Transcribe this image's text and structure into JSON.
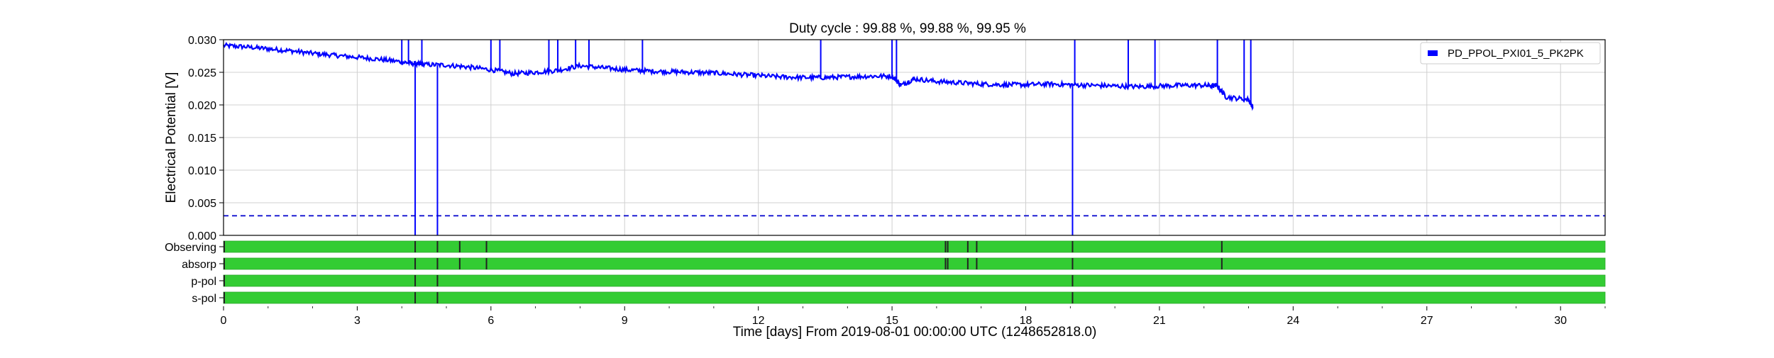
{
  "chart_data": {
    "type": "line",
    "title": "Duty cycle : 99.88 %, 99.88 %, 99.95 %",
    "xlabel": "Time [days] From 2019-08-01 00:00:00 UTC (1248652818.0)",
    "ylabel": "Electrical Potential [V]",
    "xlim": [
      0,
      31
    ],
    "ylim": [
      0,
      0.03
    ],
    "x_ticks": [
      0,
      3,
      6,
      9,
      12,
      15,
      18,
      21,
      24,
      27,
      30
    ],
    "x_tick_labels": [
      "0",
      "3",
      "6",
      "9",
      "12",
      "15",
      "18",
      "21",
      "24",
      "27",
      "30"
    ],
    "y_ticks": [
      0,
      0.005,
      0.01,
      0.015,
      0.02,
      0.025,
      0.03
    ],
    "y_tick_labels": [
      "0.000",
      "0.005",
      "0.010",
      "0.015",
      "0.020",
      "0.025",
      "0.030"
    ],
    "grid": true,
    "legend_position": "top-right",
    "colors": {
      "series": "#0000ff",
      "threshold": "#0000cc",
      "segment_on": "#33cc33",
      "segment_off": "#222222",
      "grid": "#d0d0d0"
    },
    "series": [
      {
        "name": "PD_PPOL_PXI01_5_PK2PK",
        "x": [
          0,
          0.5,
          1,
          1.5,
          2,
          2.5,
          3,
          3.5,
          4,
          4.3,
          4.5,
          5,
          5.5,
          6,
          6.5,
          7,
          7.5,
          8,
          8.5,
          9,
          9.5,
          10,
          10.5,
          11,
          11.5,
          12,
          12.5,
          13,
          13.5,
          14,
          14.5,
          15,
          15.2,
          15.5,
          16,
          16.5,
          17,
          17.5,
          18,
          18.5,
          19,
          19.5,
          20,
          20.5,
          21,
          21.5,
          22,
          22.3,
          22.5,
          23,
          23.1
        ],
        "y": [
          0.0291,
          0.0289,
          0.0286,
          0.0283,
          0.0279,
          0.0276,
          0.0273,
          0.027,
          0.0266,
          0.0263,
          0.0262,
          0.0261,
          0.0258,
          0.0254,
          0.0248,
          0.025,
          0.0253,
          0.026,
          0.0257,
          0.0254,
          0.0252,
          0.0251,
          0.025,
          0.0249,
          0.0247,
          0.0245,
          0.0243,
          0.0242,
          0.0242,
          0.0243,
          0.0244,
          0.0244,
          0.023,
          0.024,
          0.0236,
          0.0234,
          0.0232,
          0.0231,
          0.0231,
          0.0232,
          0.0231,
          0.023,
          0.0229,
          0.0228,
          0.0229,
          0.023,
          0.023,
          0.0229,
          0.0212,
          0.0208,
          0.0196
        ]
      }
    ],
    "spikes_up": [
      4.0,
      4.15,
      4.45,
      6.0,
      6.2,
      7.3,
      7.5,
      7.9,
      8.2,
      9.4,
      13.4,
      15.0,
      15.1,
      19.1,
      20.3,
      20.9,
      22.3,
      22.9,
      23.05
    ],
    "spikes_down": [
      4.3,
      4.8,
      19.05
    ],
    "threshold": {
      "y": 0.003
    },
    "segments": [
      {
        "label": "Observing",
        "gaps": [
          4.3,
          4.8,
          5.3,
          5.9,
          16.2,
          16.25,
          16.7,
          16.9,
          19.05,
          22.4
        ]
      },
      {
        "label": "absorp",
        "gaps": [
          4.3,
          4.8,
          5.3,
          5.9,
          16.2,
          16.25,
          16.7,
          16.9,
          19.05,
          22.4
        ]
      },
      {
        "label": "p-pol",
        "gaps": [
          4.3,
          4.8,
          19.05
        ]
      },
      {
        "label": "s-pol",
        "gaps": [
          4.3,
          4.8,
          19.05
        ]
      }
    ]
  }
}
